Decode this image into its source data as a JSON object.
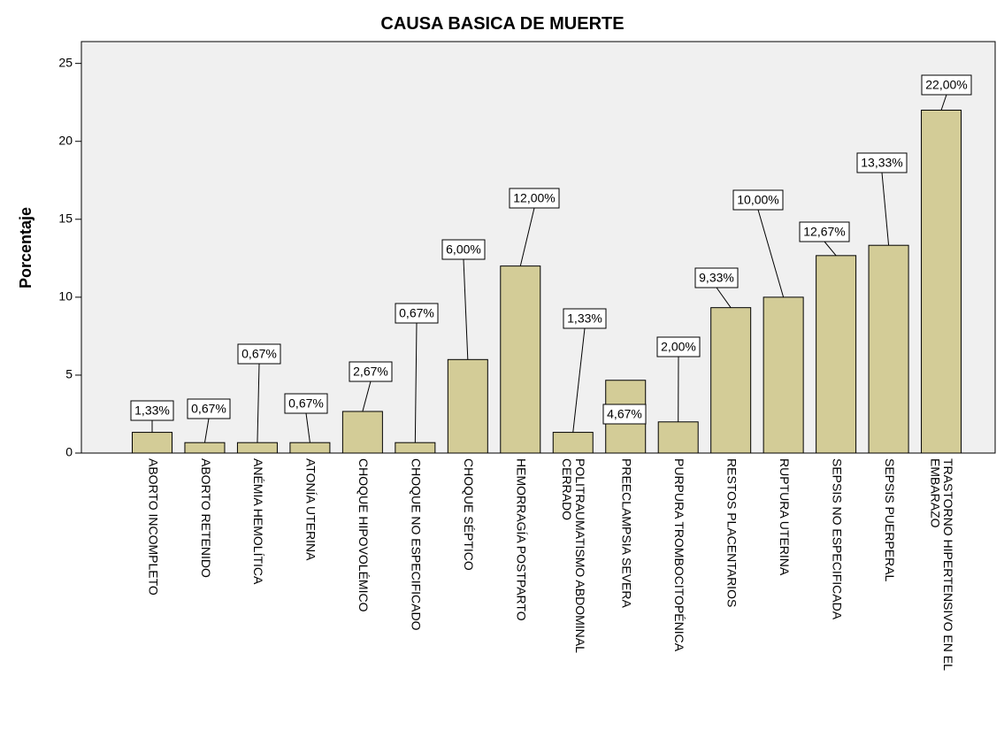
{
  "chart_data": {
    "type": "bar",
    "title": "CAUSA BASICA DE MUERTE",
    "y_label": "Porcentaje",
    "categories": [
      "ABORTO INCOMPLETO",
      "ABORTO RETENIDO",
      "ANÉMIA HEMOLÍTICA",
      "ATONÍA UTERINA",
      "CHOQUE HIPOVOLÉMICO",
      "CHOQUE NO ESPECIFICADO",
      "CHOQUE SÉPTICO",
      "HEMORRAGÍA POSTPARTO",
      "POLITRAUMATISMO ABDOMINAL CERRADO",
      "PREECLAMPSIA SEVERA",
      "PURPURA TROMBOCITOPÉNICA",
      "RESTOS PLACENTARIOS",
      "RUPTURA UTERINA",
      "SEPSIS NO ESPECIFICADA",
      "SEPSIS PUERPERAL",
      "TRASTORNO HIPERTENSIVO EN EL EMBARAZO"
    ],
    "values": [
      1.33,
      0.67,
      0.67,
      0.67,
      2.67,
      0.67,
      6.0,
      12.0,
      1.33,
      4.67,
      2.0,
      9.33,
      10.0,
      12.67,
      13.33,
      22.0
    ],
    "value_labels": [
      "1,33%",
      "0,67%",
      "0,67%",
      "0,67%",
      "2,67%",
      "0,67%",
      "6,00%",
      "12,00%",
      "1,33%",
      "4,67%",
      "2,00%",
      "9,33%",
      "10,00%",
      "12,67%",
      "13,33%",
      "22,00%"
    ],
    "color": "#d3cc97",
    "ylim": [
      0,
      26.4
    ],
    "yticks": [
      0,
      5,
      10,
      15,
      20,
      25
    ],
    "grid": false
  }
}
